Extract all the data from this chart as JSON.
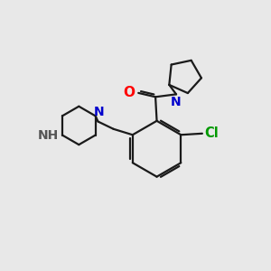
{
  "background_color": "#e8e8e8",
  "bond_color": "#1a1a1a",
  "atom_colors": {
    "O": "#ff0000",
    "N": "#0000cc",
    "NH": "#555555",
    "Cl": "#009900"
  },
  "figsize": [
    3.0,
    3.0
  ],
  "dpi": 100,
  "xlim": [
    0,
    10
  ],
  "ylim": [
    0,
    10
  ]
}
